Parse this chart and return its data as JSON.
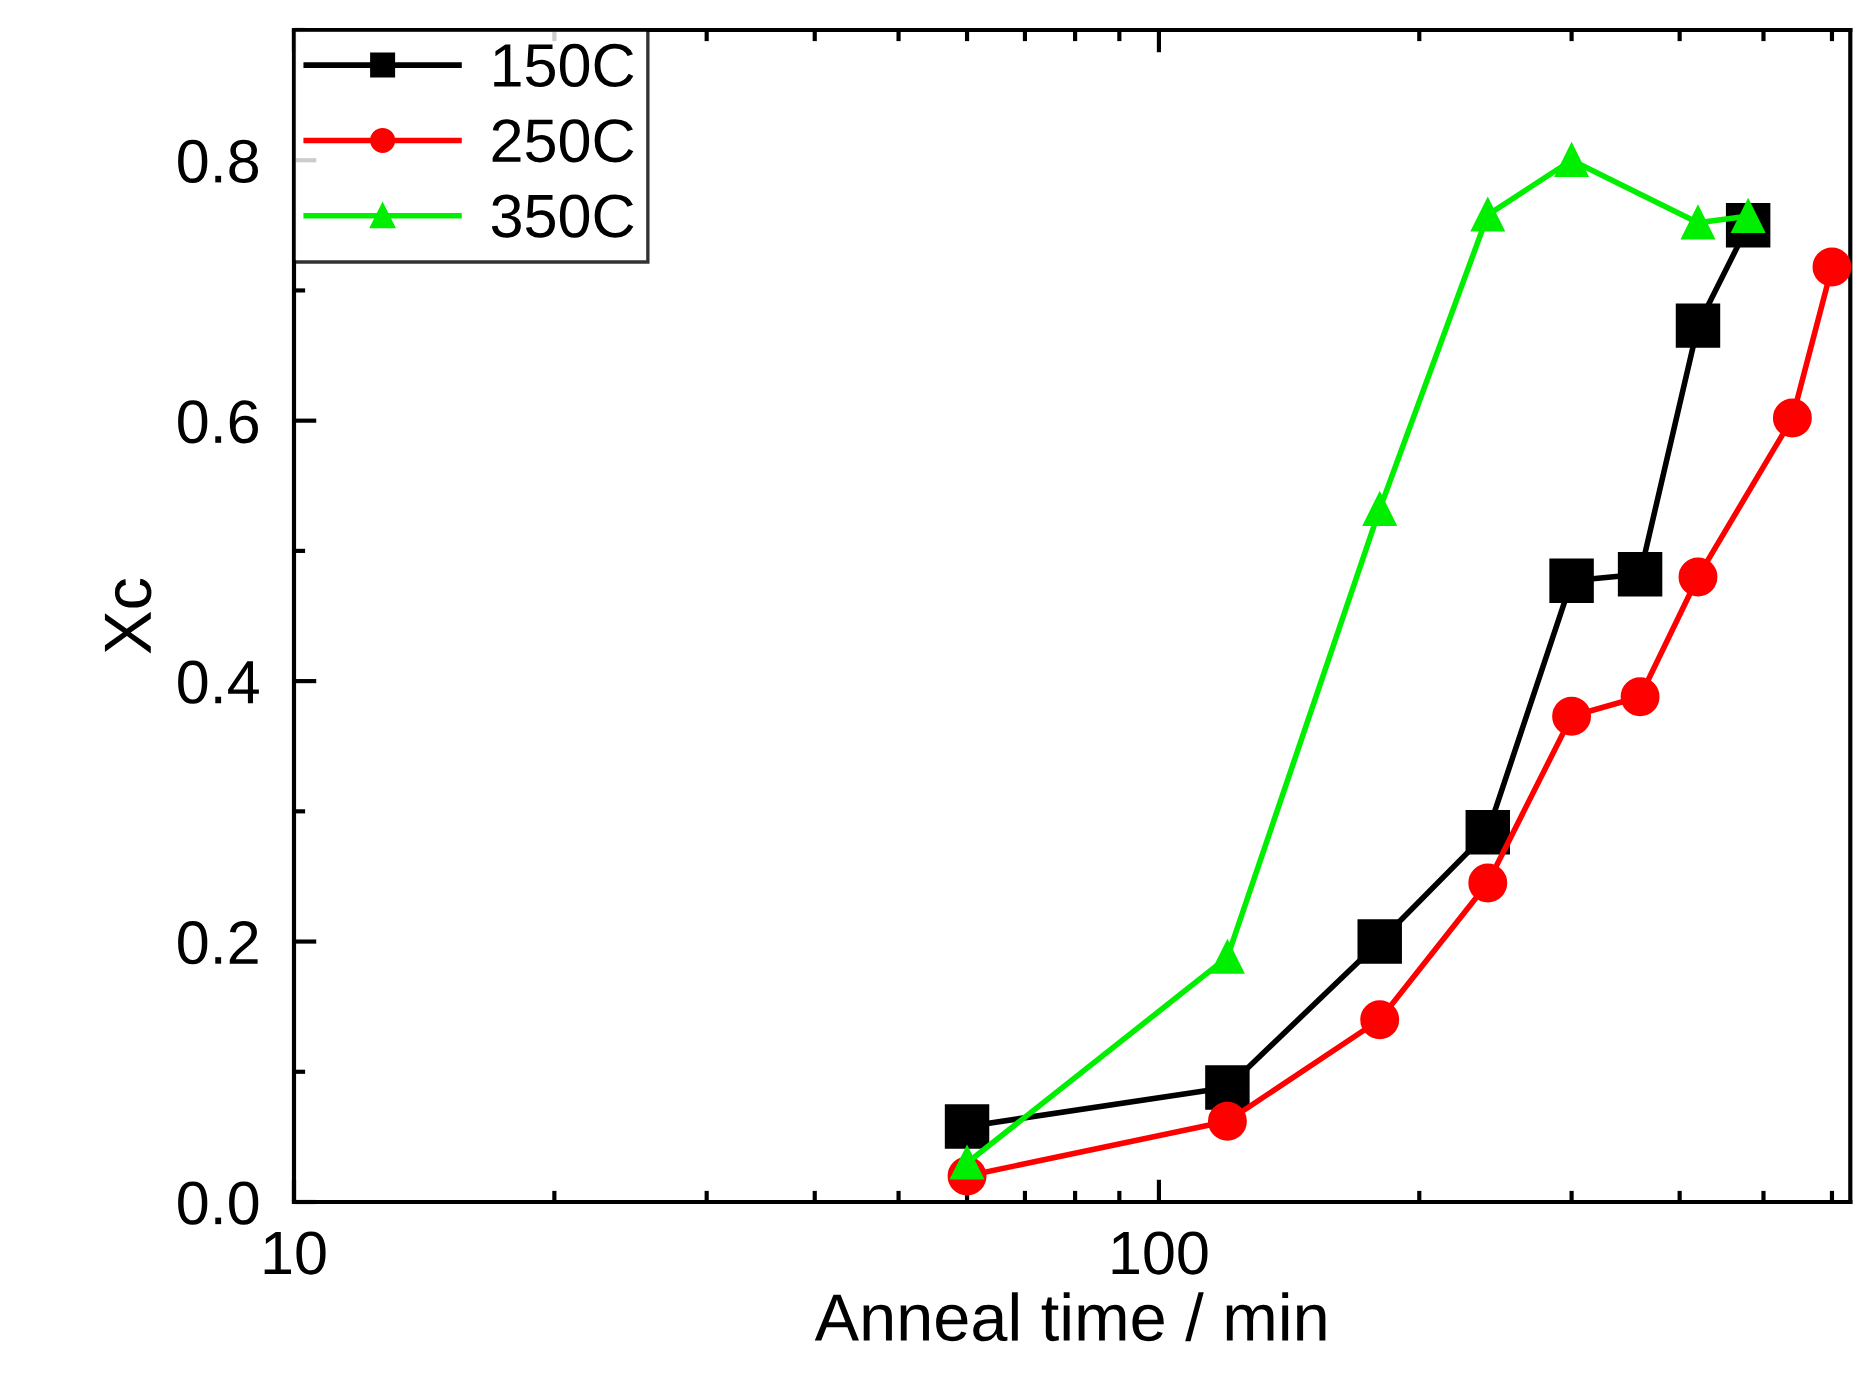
{
  "chart_data": {
    "type": "line",
    "xlabel": "Anneal time / min",
    "ylabel": "Xc",
    "log": "x",
    "xlim": [
      10,
      630
    ],
    "xticks": [
      10,
      100
    ],
    "ylim": [
      0,
      0.9
    ],
    "yticks": [
      {
        "value": 0,
        "label": "0.0"
      },
      0.2,
      0.4,
      0.6,
      0.8
    ],
    "line_style": "solid",
    "grid": false,
    "legend": "top left",
    "series": [
      {
        "name": "150C",
        "color": "#000000",
        "marker": "square",
        "x": [
          60,
          120,
          180,
          240,
          300,
          360,
          420,
          480
        ],
        "values": [
          0.058,
          0.088,
          0.2,
          0.284,
          0.477,
          0.482,
          0.673,
          0.75
        ]
      },
      {
        "name": "250C",
        "color": "#ff0000",
        "marker": "circle",
        "x": [
          60,
          120,
          180,
          240,
          300,
          360,
          420,
          540,
          600
        ],
        "values": [
          0.02,
          0.062,
          0.14,
          0.245,
          0.373,
          0.388,
          0.48,
          0.602,
          0.718
        ]
      },
      {
        "name": "350C",
        "color": "#00ee00",
        "marker": "triangle",
        "x": [
          60,
          120,
          180,
          240,
          300,
          420,
          480
        ],
        "values": [
          0.03,
          0.188,
          0.532,
          0.758,
          0.8,
          0.752,
          0.757
        ]
      }
    ]
  }
}
